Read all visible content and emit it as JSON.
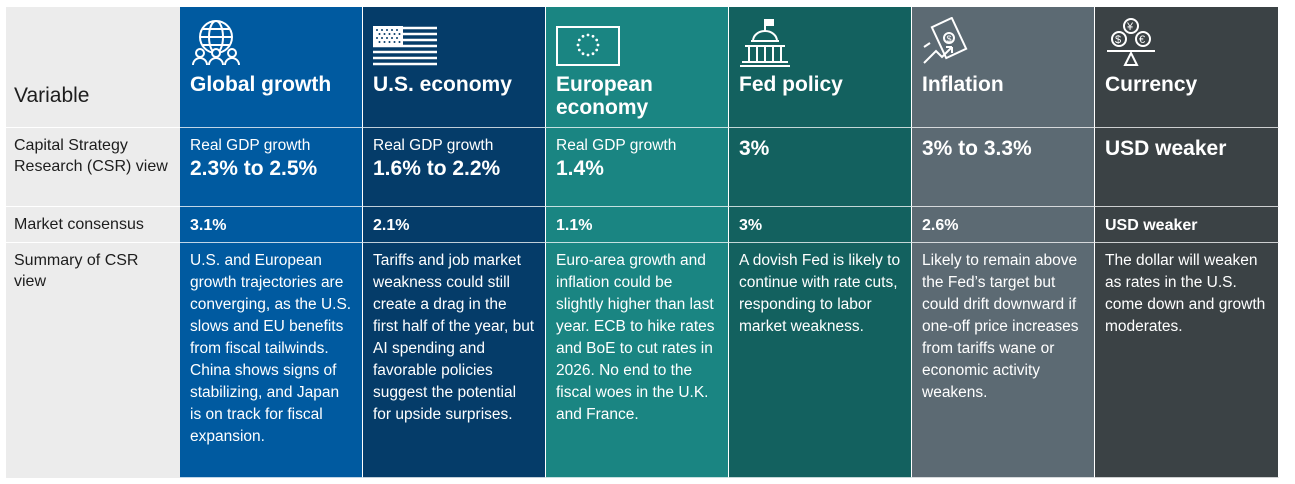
{
  "labels": {
    "variable": "Variable",
    "csr_view": "Capital Strategy Research (CSR) view",
    "market_consensus": "Market consensus",
    "summary": "Summary of CSR view"
  },
  "columns": [
    {
      "title": "Global growth",
      "icon": "globe-people-icon",
      "color": "#005aa0",
      "csr_small": "Real GDP growth",
      "csr_big": "2.3% to 2.5%",
      "consensus": "3.1%",
      "summary": "U.S. and European growth trajectories are converging, as the U.S. slows and EU benefits from fiscal tailwinds. China shows signs of stabilizing, and Japan is on track for fiscal expansion."
    },
    {
      "title": "U.S. economy",
      "icon": "us-flag-icon",
      "color": "#053c69",
      "csr_small": "Real GDP growth",
      "csr_big": "1.6% to 2.2%",
      "consensus": "2.1%",
      "summary": "Tariffs and job market weakness could still create a drag in the first half of the year, but AI spending and favorable policies suggest the potential for upside surprises."
    },
    {
      "title": "European economy",
      "icon": "eu-flag-icon",
      "color": "#1a8582",
      "csr_small": "Real GDP growth",
      "csr_big": "1.4%",
      "consensus": "1.1%",
      "summary": "Euro-area growth and inflation could be slightly higher than last year. ECB to hike rates and BoE to cut rates in 2026. No end to the fiscal woes in the U.K. and France."
    },
    {
      "title": "Fed policy",
      "icon": "capitol-building-icon",
      "color": "#13615f",
      "csr_small": "",
      "csr_big": "3%",
      "consensus": "3%",
      "summary": "A dovish Fed is likely to continue with rate cuts, responding to labor market weakness."
    },
    {
      "title": "Inflation",
      "icon": "inflation-money-icon",
      "color": "#5c6a73",
      "csr_small": "",
      "csr_big": "3% to 3.3%",
      "consensus": "2.6%",
      "summary": "Likely to remain above the Fed’s target but could drift downward if one-off price increases from tariffs wane or economic activity weakens."
    },
    {
      "title": "Currency",
      "icon": "currency-scale-icon",
      "color": "#3b4245",
      "csr_small": "",
      "csr_big": "USD weaker",
      "consensus": "USD weaker",
      "summary": "The dollar will weaken as rates in the U.S. come down and growth moderates."
    }
  ]
}
